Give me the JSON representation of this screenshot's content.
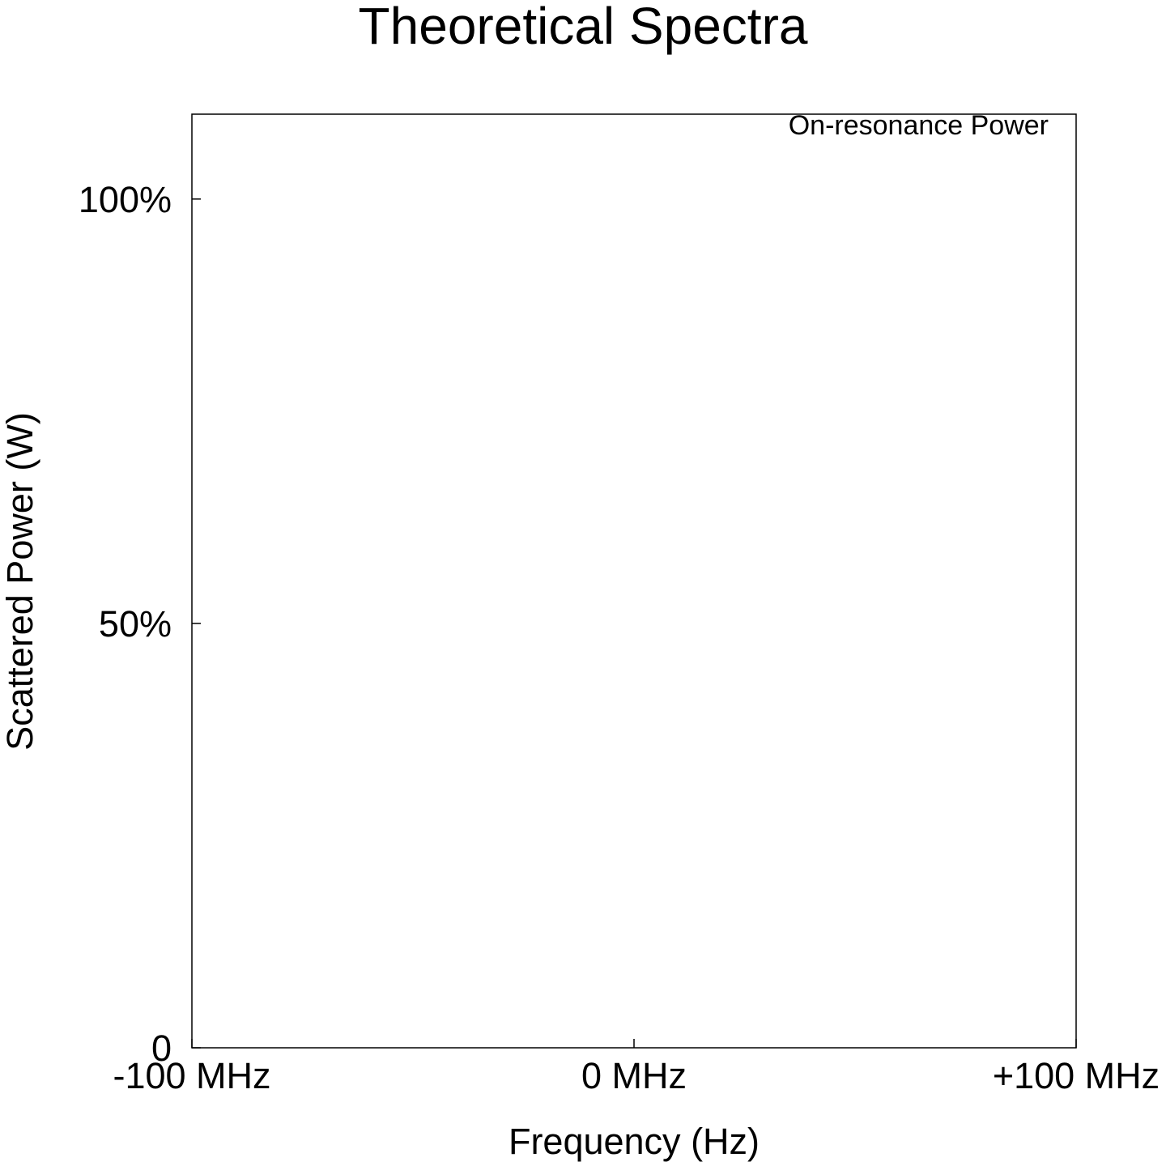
{
  "chart_data": {
    "type": "line",
    "title": "Theoretical Spectra",
    "xlabel": "Frequency (Hz)",
    "ylabel": "Scattered Power (W)",
    "xlim": [
      -100,
      100
    ],
    "ylim": [
      0,
      110
    ],
    "x_ticks": [
      {
        "value": -100,
        "label": "-100 MHz"
      },
      {
        "value": 0,
        "label": "0 MHz"
      },
      {
        "value": 100,
        "label": "+100 MHz"
      }
    ],
    "y_ticks": [
      {
        "value": 0,
        "label": "0"
      },
      {
        "value": 50,
        "label": "50%"
      },
      {
        "value": 100,
        "label": "100%"
      }
    ],
    "legend": {
      "position": "top-right",
      "entries": [
        "On-resonance Power"
      ]
    },
    "series": [
      {
        "name": "On-resonance Power",
        "x": [],
        "y": []
      }
    ],
    "grid": false
  }
}
